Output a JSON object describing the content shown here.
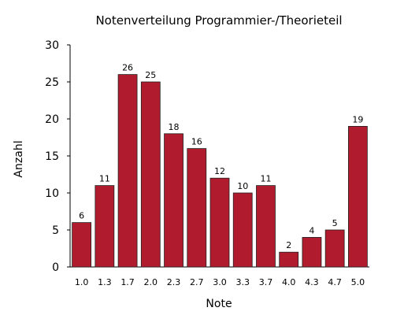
{
  "chart_data": {
    "type": "bar",
    "title": "Notenverteilung Programmier-/Theorieteil",
    "xlabel": "Note",
    "ylabel": "Anzahl",
    "categories": [
      "1.0",
      "1.3",
      "1.7",
      "2.0",
      "2.3",
      "2.7",
      "3.0",
      "3.3",
      "3.7",
      "4.0",
      "4.3",
      "4.7",
      "5.0"
    ],
    "values": [
      6,
      11,
      26,
      25,
      18,
      16,
      12,
      10,
      11,
      2,
      4,
      5,
      19
    ],
    "ylim": [
      0,
      30
    ],
    "yticks": [
      0,
      5,
      10,
      15,
      20,
      25,
      30
    ],
    "bar_color": "#b01c2e",
    "grid": false,
    "data_labels": true
  }
}
